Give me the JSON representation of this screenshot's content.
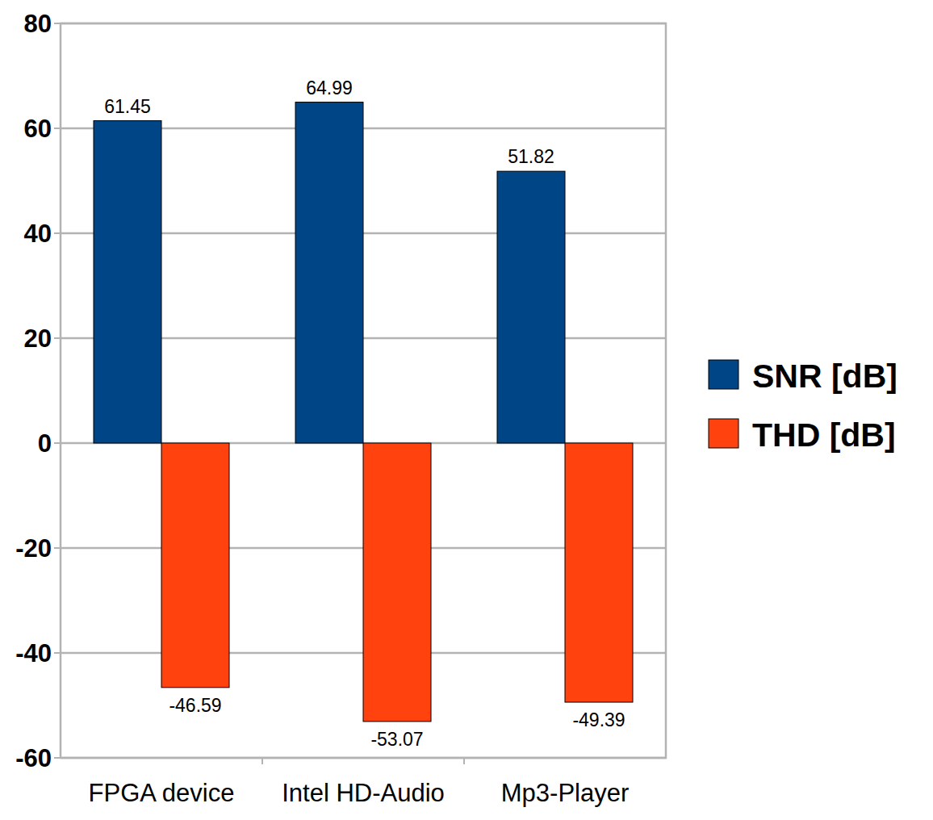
{
  "chart_data": {
    "type": "bar",
    "categories": [
      "FPGA device",
      "Intel HD-Audio",
      "Mp3-Player"
    ],
    "series": [
      {
        "name": "SNR [dB]",
        "color": "#004586",
        "values": [
          61.45,
          64.99,
          51.82
        ]
      },
      {
        "name": "THD [dB]",
        "color": "#ff420e",
        "values": [
          -46.59,
          -53.07,
          -49.39
        ]
      }
    ],
    "ylim": [
      -60,
      80
    ],
    "yticks": [
      -60,
      -40,
      -20,
      0,
      20,
      40,
      60,
      80
    ],
    "grid": true,
    "data_labels": true,
    "legend": "right"
  }
}
